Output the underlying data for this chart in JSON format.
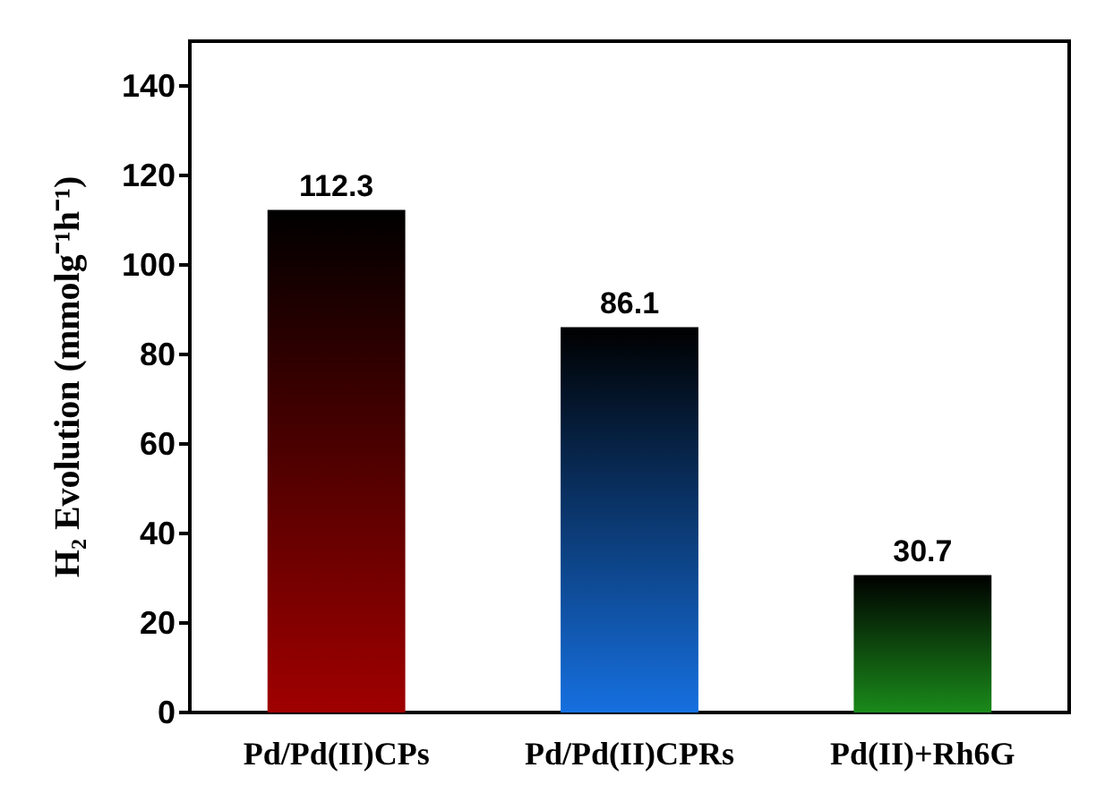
{
  "chart_data": {
    "type": "bar",
    "ylabel": "H₂ Evolution (mmolg⁻¹h⁻¹)",
    "categories": [
      "Pd/Pd(II)CPs",
      "Pd/Pd(II)CPRs",
      "Pd(II)+Rh6G"
    ],
    "values": [
      112.3,
      86.1,
      30.7
    ],
    "colors": [
      "#a00000",
      "#1670e0",
      "#1a8a1a"
    ],
    "ylim": [
      0,
      150
    ],
    "yticks": [
      0,
      20,
      40,
      60,
      80,
      100,
      120,
      140
    ],
    "data_labels": true,
    "grid": false
  }
}
